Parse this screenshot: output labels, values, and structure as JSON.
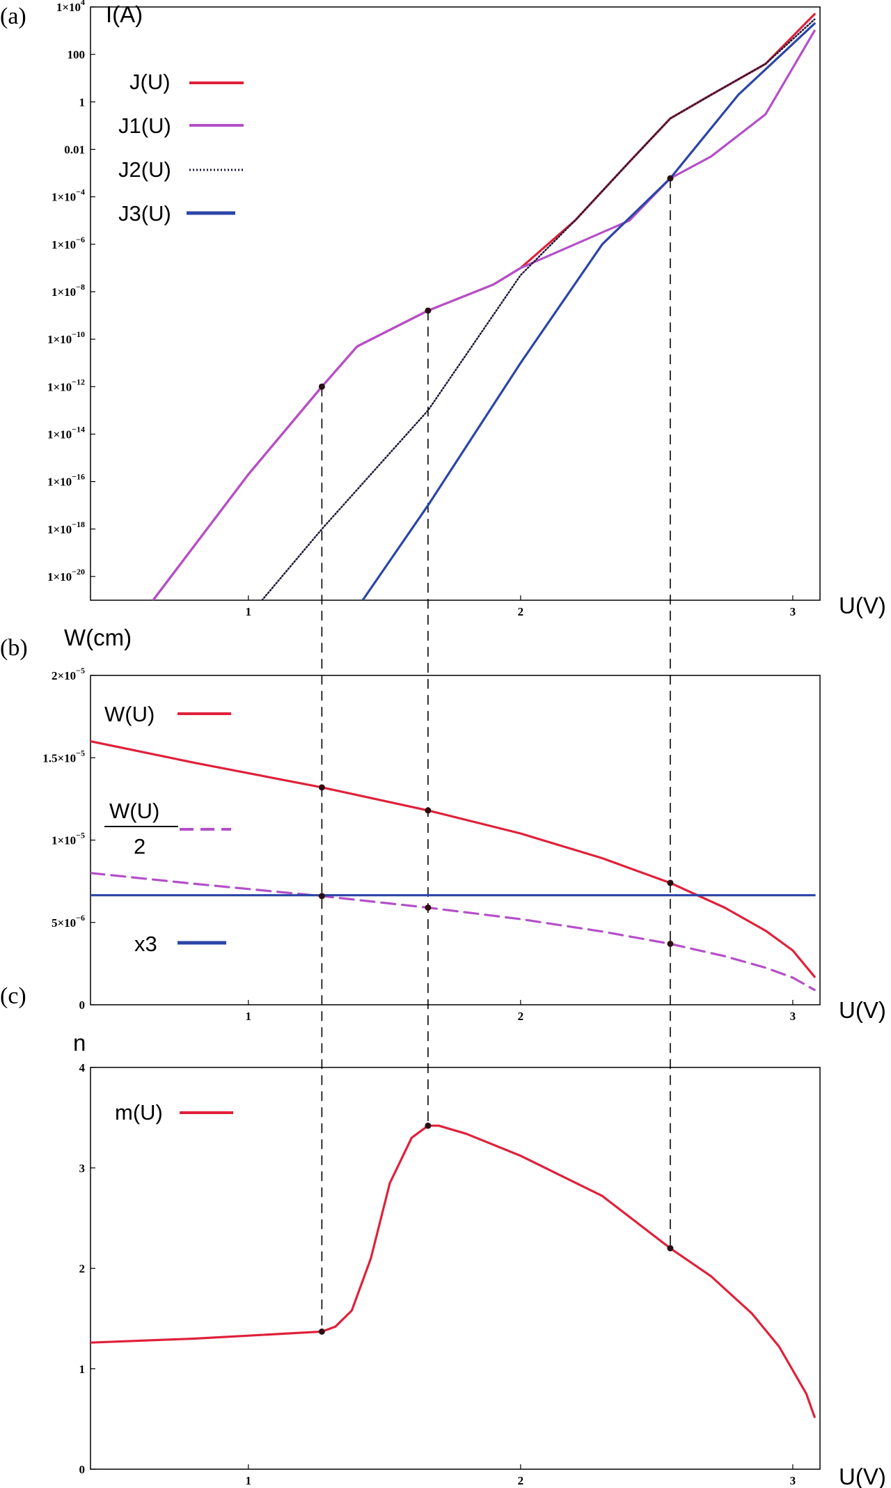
{
  "panel_labels": [
    "(a)",
    "(b)",
    "(c)"
  ],
  "colors": {
    "J": "#e0203a",
    "J1": "#b44fc8",
    "J2": "#1a1a3a",
    "J3": "#2b45a8",
    "W": "#e0203a",
    "W2": "#b44fc8",
    "x3": "#2b45a8",
    "m": "#e0203a"
  },
  "chart_data": [
    {
      "type": "line",
      "panel": "(a)",
      "xlabel": "U(V)",
      "ylabel": "I(A)",
      "y_scale": "log",
      "xlim": [
        0.42,
        3.1
      ],
      "ylim": [
        1e-20,
        100000.0
      ],
      "x_ticks": [
        "1",
        "2",
        "3"
      ],
      "y_ticks": [
        {
          "base": "1×10",
          "exp": "4"
        },
        {
          "base": "100",
          "exp": ""
        },
        {
          "base": "1",
          "exp": ""
        },
        {
          "base": "0.01",
          "exp": ""
        },
        {
          "base": "1×10",
          "exp": "−4"
        },
        {
          "base": "1×10",
          "exp": "−6"
        },
        {
          "base": "1×10",
          "exp": "−8"
        },
        {
          "base": "1×10",
          "exp": "−10"
        },
        {
          "base": "1×10",
          "exp": "−12"
        },
        {
          "base": "1×10",
          "exp": "−14"
        },
        {
          "base": "1×10",
          "exp": "−16"
        },
        {
          "base": "1×10",
          "exp": "−18"
        },
        {
          "base": "1×10",
          "exp": "−20"
        }
      ],
      "grid": false,
      "legend_position": "top-left",
      "series": [
        {
          "name": "J(U)",
          "style": "solid",
          "x": [
            0.65,
            1.0,
            1.27,
            1.4,
            1.66,
            1.9,
            2.0,
            2.2,
            2.4,
            2.55,
            2.7,
            2.9,
            3.08
          ],
          "y": [
            1e-20,
            2e-15,
            1e-11,
            5e-10,
            1.6e-08,
            2e-07,
            1e-06,
            0.0001,
            0.03,
            2,
            20,
            400,
            50000
          ]
        },
        {
          "name": "J1(U)",
          "style": "solid",
          "x": [
            0.65,
            1.0,
            1.27,
            1.4,
            1.66,
            1.9,
            2.0,
            2.2,
            2.4,
            2.55,
            2.7,
            2.9,
            3.08
          ],
          "y": [
            1e-20,
            2e-15,
            1e-11,
            5e-10,
            1.6e-08,
            2e-07,
            1e-06,
            1e-05,
            0.0001,
            0.006,
            0.05,
            3,
            10000
          ]
        },
        {
          "name": "J2(U)",
          "style": "dotted",
          "x": [
            1.05,
            1.27,
            1.66,
            2.0,
            2.2,
            2.4,
            2.55,
            2.7,
            2.9,
            3.08
          ],
          "y": [
            1e-20,
            1e-17,
            1e-12,
            5e-07,
            0.0001,
            0.03,
            2,
            20,
            400,
            30000
          ]
        },
        {
          "name": "J3(U)",
          "style": "solid",
          "x": [
            1.42,
            1.66,
            2.0,
            2.3,
            2.55,
            2.8,
            3.08
          ],
          "y": [
            1e-20,
            1e-16,
            1e-10,
            1e-05,
            0.006,
            20,
            20000
          ]
        }
      ],
      "markers": [
        {
          "x": 1.27,
          "y": 1e-11
        },
        {
          "x": 1.66,
          "y": 1.6e-08
        },
        {
          "x": 2.55,
          "y": 0.006
        }
      ]
    },
    {
      "type": "line",
      "panel": "(b)",
      "xlabel": "U(V)",
      "ylabel": "W(cm)",
      "xlim": [
        0.42,
        3.1
      ],
      "ylim": [
        0,
        2e-05
      ],
      "x_ticks": [
        "1",
        "2",
        "3"
      ],
      "y_ticks": [
        {
          "base": "2×10",
          "exp": "−5"
        },
        {
          "base": "1.5×10",
          "exp": "−5"
        },
        {
          "base": "1×10",
          "exp": "−5"
        },
        {
          "base": "5×10",
          "exp": "−6"
        },
        {
          "base": "0",
          "exp": ""
        }
      ],
      "grid": false,
      "legend_position": "left",
      "series": [
        {
          "name": "W(U)",
          "style": "solid",
          "x": [
            0.42,
            0.8,
            1.27,
            1.66,
            2.0,
            2.3,
            2.55,
            2.75,
            2.9,
            3.0,
            3.08
          ],
          "y": [
            1.6e-05,
            1.47e-05,
            1.32e-05,
            1.18e-05,
            1.04e-05,
            8.9e-06,
            7.4e-06,
            5.9e-06,
            4.5e-06,
            3.3e-06,
            1.7e-06
          ]
        },
        {
          "name": "W(U)/2",
          "legend_numerator": "W(U)",
          "legend_denominator": "2",
          "style": "dashed",
          "x": [
            0.42,
            0.8,
            1.27,
            1.66,
            2.0,
            2.3,
            2.55,
            2.75,
            2.9,
            3.0,
            3.08
          ],
          "y": [
            8e-06,
            7.35e-06,
            6.6e-06,
            5.9e-06,
            5.2e-06,
            4.45e-06,
            3.7e-06,
            2.95e-06,
            2.25e-06,
            1.65e-06,
            9e-07
          ]
        },
        {
          "name": "x3",
          "style": "solid",
          "x": [
            0.42,
            3.08
          ],
          "y": [
            6.65e-06,
            6.65e-06
          ]
        }
      ],
      "markers": [
        {
          "x": 1.27,
          "y": 1.32e-05
        },
        {
          "x": 1.66,
          "y": 1.18e-05
        },
        {
          "x": 2.55,
          "y": 7.4e-06
        },
        {
          "x": 1.27,
          "y": 6.6e-06
        },
        {
          "x": 1.66,
          "y": 5.9e-06
        },
        {
          "x": 2.55,
          "y": 3.7e-06
        }
      ]
    },
    {
      "type": "line",
      "panel": "(c)",
      "xlabel": "U(V)",
      "ylabel": "n",
      "xlim": [
        0.42,
        3.1
      ],
      "ylim": [
        0,
        4
      ],
      "x_ticks": [
        "1",
        "2",
        "3"
      ],
      "y_ticks": [
        {
          "base": "4",
          "exp": ""
        },
        {
          "base": "3",
          "exp": ""
        },
        {
          "base": "2",
          "exp": ""
        },
        {
          "base": "1",
          "exp": ""
        },
        {
          "base": "0",
          "exp": ""
        }
      ],
      "grid": false,
      "legend_position": "top-left",
      "series": [
        {
          "name": "m(U)",
          "style": "solid",
          "x": [
            0.42,
            0.8,
            1.27,
            1.32,
            1.38,
            1.45,
            1.52,
            1.6,
            1.66,
            1.7,
            1.8,
            2.0,
            2.3,
            2.55,
            2.7,
            2.85,
            2.95,
            3.05,
            3.08
          ],
          "y": [
            1.26,
            1.3,
            1.37,
            1.42,
            1.58,
            2.1,
            2.85,
            3.3,
            3.42,
            3.42,
            3.34,
            3.12,
            2.72,
            2.2,
            1.92,
            1.55,
            1.22,
            0.75,
            0.52
          ]
        }
      ],
      "markers": [
        {
          "x": 1.27,
          "y": 1.37
        },
        {
          "x": 1.66,
          "y": 3.42
        },
        {
          "x": 2.55,
          "y": 2.2
        }
      ]
    }
  ]
}
